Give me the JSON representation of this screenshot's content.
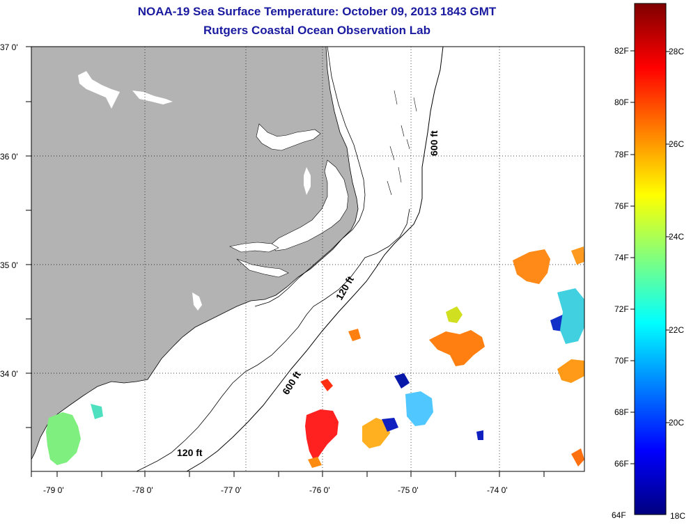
{
  "header": {
    "title": "NOAA-19 Sea Surface Temperature:  October 09, 2013 1843 GMT",
    "subtitle": "Rutgers Coastal Ocean Observation Lab"
  },
  "axes": {
    "lat_labels": [
      "37 0'",
      "36 0'",
      "35 0'",
      "34 0'"
    ],
    "lon_labels": [
      "-79 0'",
      "-78 0'",
      "-77 0'",
      "-76 0'",
      "-75 0'",
      "-74 0'"
    ]
  },
  "contours": {
    "label_120_north": "120 ft",
    "label_600_north": "600 ft",
    "label_600_south": "600 ft",
    "label_120_south": "120 ft"
  },
  "colorbar": {
    "fahrenheit": [
      "82F",
      "80F",
      "78F",
      "76F",
      "74F",
      "72F",
      "70F",
      "68F",
      "66F",
      "64F"
    ],
    "celsius": [
      "28C",
      "26C",
      "24C",
      "22C",
      "20C",
      "18C"
    ]
  },
  "colors": {
    "land": "#b3b3b3",
    "title": "#1a1aa0"
  }
}
